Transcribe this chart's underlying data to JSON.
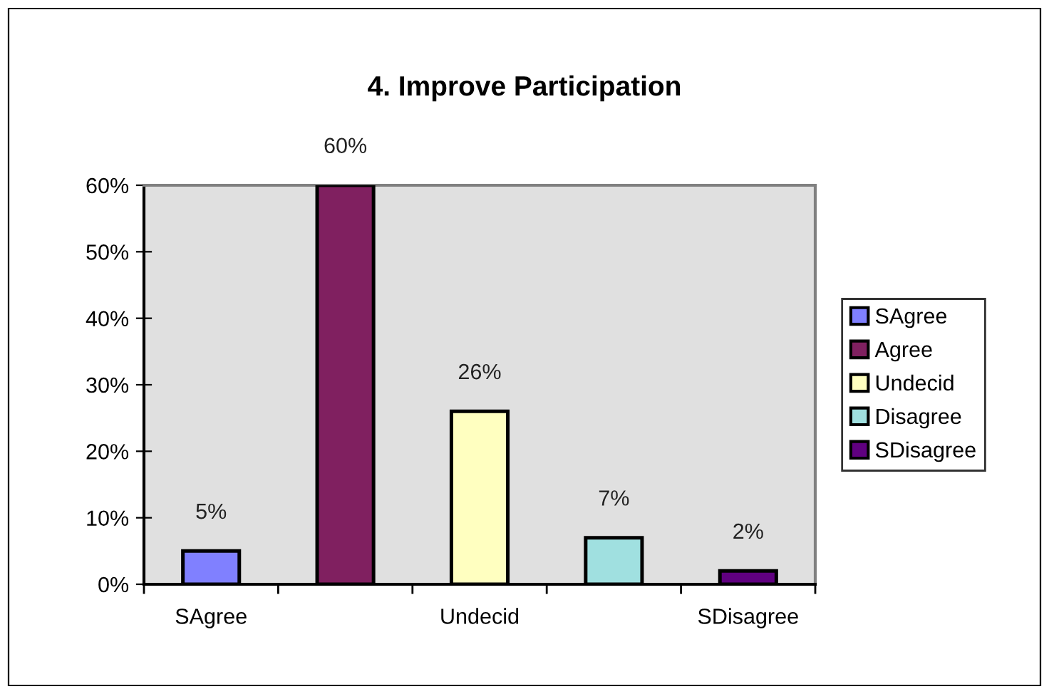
{
  "chart_data": {
    "type": "bar",
    "title": "4. Improve Participation",
    "categories": [
      "SAgree",
      null,
      "Undecid",
      null,
      "SDisagree"
    ],
    "series": [
      {
        "name": "SAgree",
        "color": "#8080ff",
        "values": [
          5,
          null,
          null,
          null,
          null
        ],
        "value_labels": [
          "5%",
          null,
          null,
          null,
          null
        ]
      },
      {
        "name": "Agree",
        "color": "#802060",
        "values": [
          null,
          60,
          null,
          null,
          null
        ],
        "value_labels": [
          null,
          "60%",
          null,
          null,
          null
        ]
      },
      {
        "name": "Undecid",
        "color": "#ffffc0",
        "values": [
          null,
          null,
          26,
          null,
          null
        ],
        "value_labels": [
          null,
          null,
          "26%",
          null,
          null
        ]
      },
      {
        "name": "Disagree",
        "color": "#a0e0e0",
        "values": [
          null,
          null,
          null,
          7,
          null
        ],
        "value_labels": [
          null,
          null,
          null,
          "7%",
          null
        ]
      },
      {
        "name": "SDisagree",
        "color": "#600080",
        "values": [
          null,
          null,
          null,
          null,
          2
        ],
        "value_labels": [
          null,
          null,
          null,
          null,
          "2%"
        ]
      }
    ],
    "ylim": [
      0,
      60
    ],
    "yticks": [
      {
        "value": 0,
        "label": "0%"
      },
      {
        "value": 10,
        "label": "10%"
      },
      {
        "value": 20,
        "label": "20%"
      },
      {
        "value": 30,
        "label": "30%"
      },
      {
        "value": 40,
        "label": "40%"
      },
      {
        "value": 50,
        "label": "50%"
      },
      {
        "value": 60,
        "label": "60%"
      }
    ],
    "grid": false,
    "legend": "right"
  }
}
